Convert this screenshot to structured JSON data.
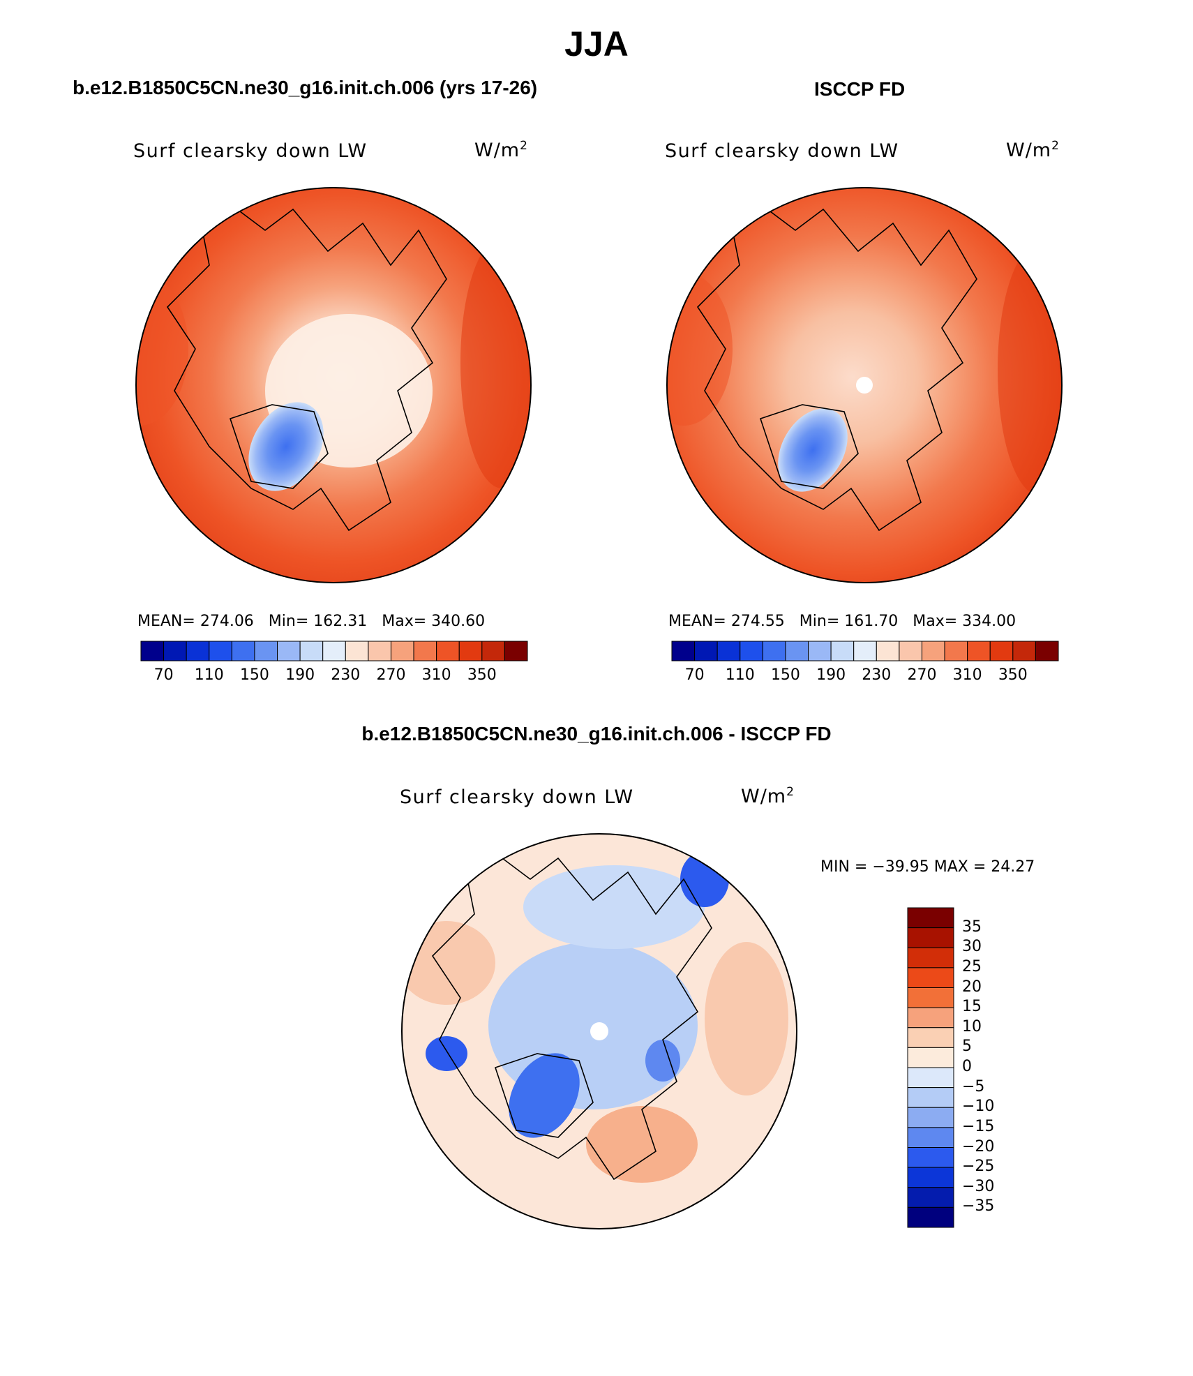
{
  "main_title": "JJA",
  "panels": {
    "model": {
      "title": "b.e12.B1850C5CN.ne30_g16.init.ch.006 (yrs 17-26)",
      "variable": "Surf clearsky down LW",
      "units": "W/m",
      "units_exp": "2",
      "mean_label": "MEAN=",
      "mean": "274.06",
      "min_label": "Min=",
      "min": "162.31",
      "max_label": "Max=",
      "max": "340.60"
    },
    "obs": {
      "title": "ISCCP FD",
      "variable": "Surf clearsky down LW",
      "units": "W/m",
      "units_exp": "2",
      "mean_label": "MEAN=",
      "mean": "274.55",
      "min_label": "Min=",
      "min": "161.70",
      "max_label": "Max=",
      "max": "334.00"
    },
    "diff": {
      "title": "b.e12.B1850C5CN.ne30_g16.init.ch.006 - ISCCP FD",
      "variable": "Surf clearsky down LW",
      "units": "W/m",
      "units_exp": "2",
      "minmax": "MIN = −39.95 MAX =  24.27"
    }
  },
  "colorbar_abs": {
    "colors": [
      "#00008c",
      "#0018b4",
      "#0a32d6",
      "#1e50ec",
      "#3e70f0",
      "#6a94f2",
      "#9ab8f6",
      "#c8dcf8",
      "#e4eefa",
      "#fce4d4",
      "#fac6ac",
      "#f6a27c",
      "#f2784c",
      "#ee5426",
      "#e23a10",
      "#c4280a",
      "#7a0000"
    ],
    "labels": [
      "70",
      "110",
      "150",
      "190",
      "230",
      "270",
      "310",
      "350"
    ]
  },
  "colorbar_diff": {
    "colors": [
      "#7a0000",
      "#a81200",
      "#d22e08",
      "#ec4a18",
      "#f27038",
      "#f6a27c",
      "#fad0b4",
      "#fcebdc",
      "#dce8fa",
      "#b4ccf6",
      "#8cacf2",
      "#5e88f0",
      "#2c5aee",
      "#0c36d8",
      "#041cae",
      "#00007e"
    ],
    "labels": [
      "35",
      "30",
      "25",
      "20",
      "15",
      "10",
      "5",
      "0",
      "−5",
      "−10",
      "−15",
      "−20",
      "−25",
      "−30",
      "−35"
    ]
  }
}
